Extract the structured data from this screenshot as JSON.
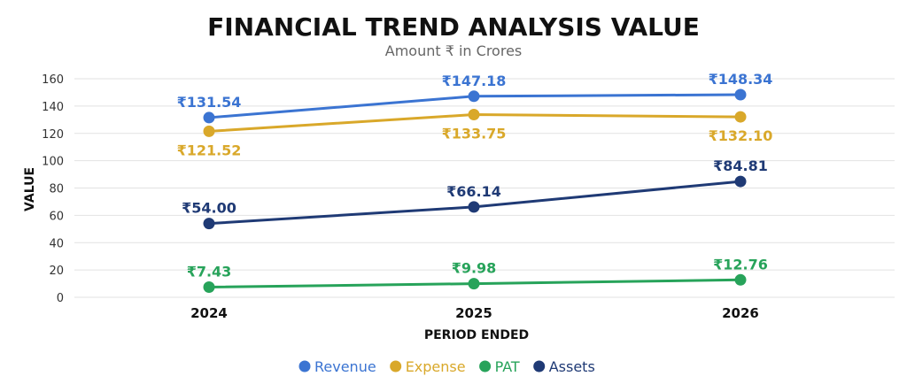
{
  "chart_data": {
    "type": "line",
    "title": "FINANCIAL TREND ANALYSIS VALUE",
    "subtitle": "Amount ₹ in Crores",
    "xlabel": "PERIOD ENDED",
    "ylabel": "VALUE",
    "categories": [
      "2024",
      "2025",
      "2026"
    ],
    "ylim": [
      0,
      160
    ],
    "yticks": [
      0,
      20,
      40,
      60,
      80,
      100,
      120,
      140,
      160
    ],
    "grid": true,
    "legend_position": "bottom",
    "series": [
      {
        "name": "Revenue",
        "color": "#3b74d2",
        "values": [
          131.54,
          147.18,
          148.34
        ],
        "labels": [
          "₹131.54",
          "₹147.18",
          "₹148.34"
        ],
        "label_side": [
          "above",
          "above",
          "above"
        ]
      },
      {
        "name": "Expense",
        "color": "#d9a82a",
        "values": [
          121.52,
          133.75,
          132.1
        ],
        "labels": [
          "₹121.52",
          "₹133.75",
          "₹132.10"
        ],
        "label_side": [
          "below",
          "below",
          "below"
        ]
      },
      {
        "name": "PAT",
        "color": "#27a35a",
        "values": [
          7.43,
          9.98,
          12.76
        ],
        "labels": [
          "₹7.43",
          "₹9.98",
          "₹12.76"
        ],
        "label_side": [
          "above",
          "above",
          "above"
        ]
      },
      {
        "name": "Assets",
        "color": "#1f3a75",
        "values": [
          54.0,
          66.14,
          84.81
        ],
        "labels": [
          "₹54.00",
          "₹66.14",
          "₹84.81"
        ],
        "label_side": [
          "above",
          "above",
          "above"
        ]
      }
    ]
  }
}
